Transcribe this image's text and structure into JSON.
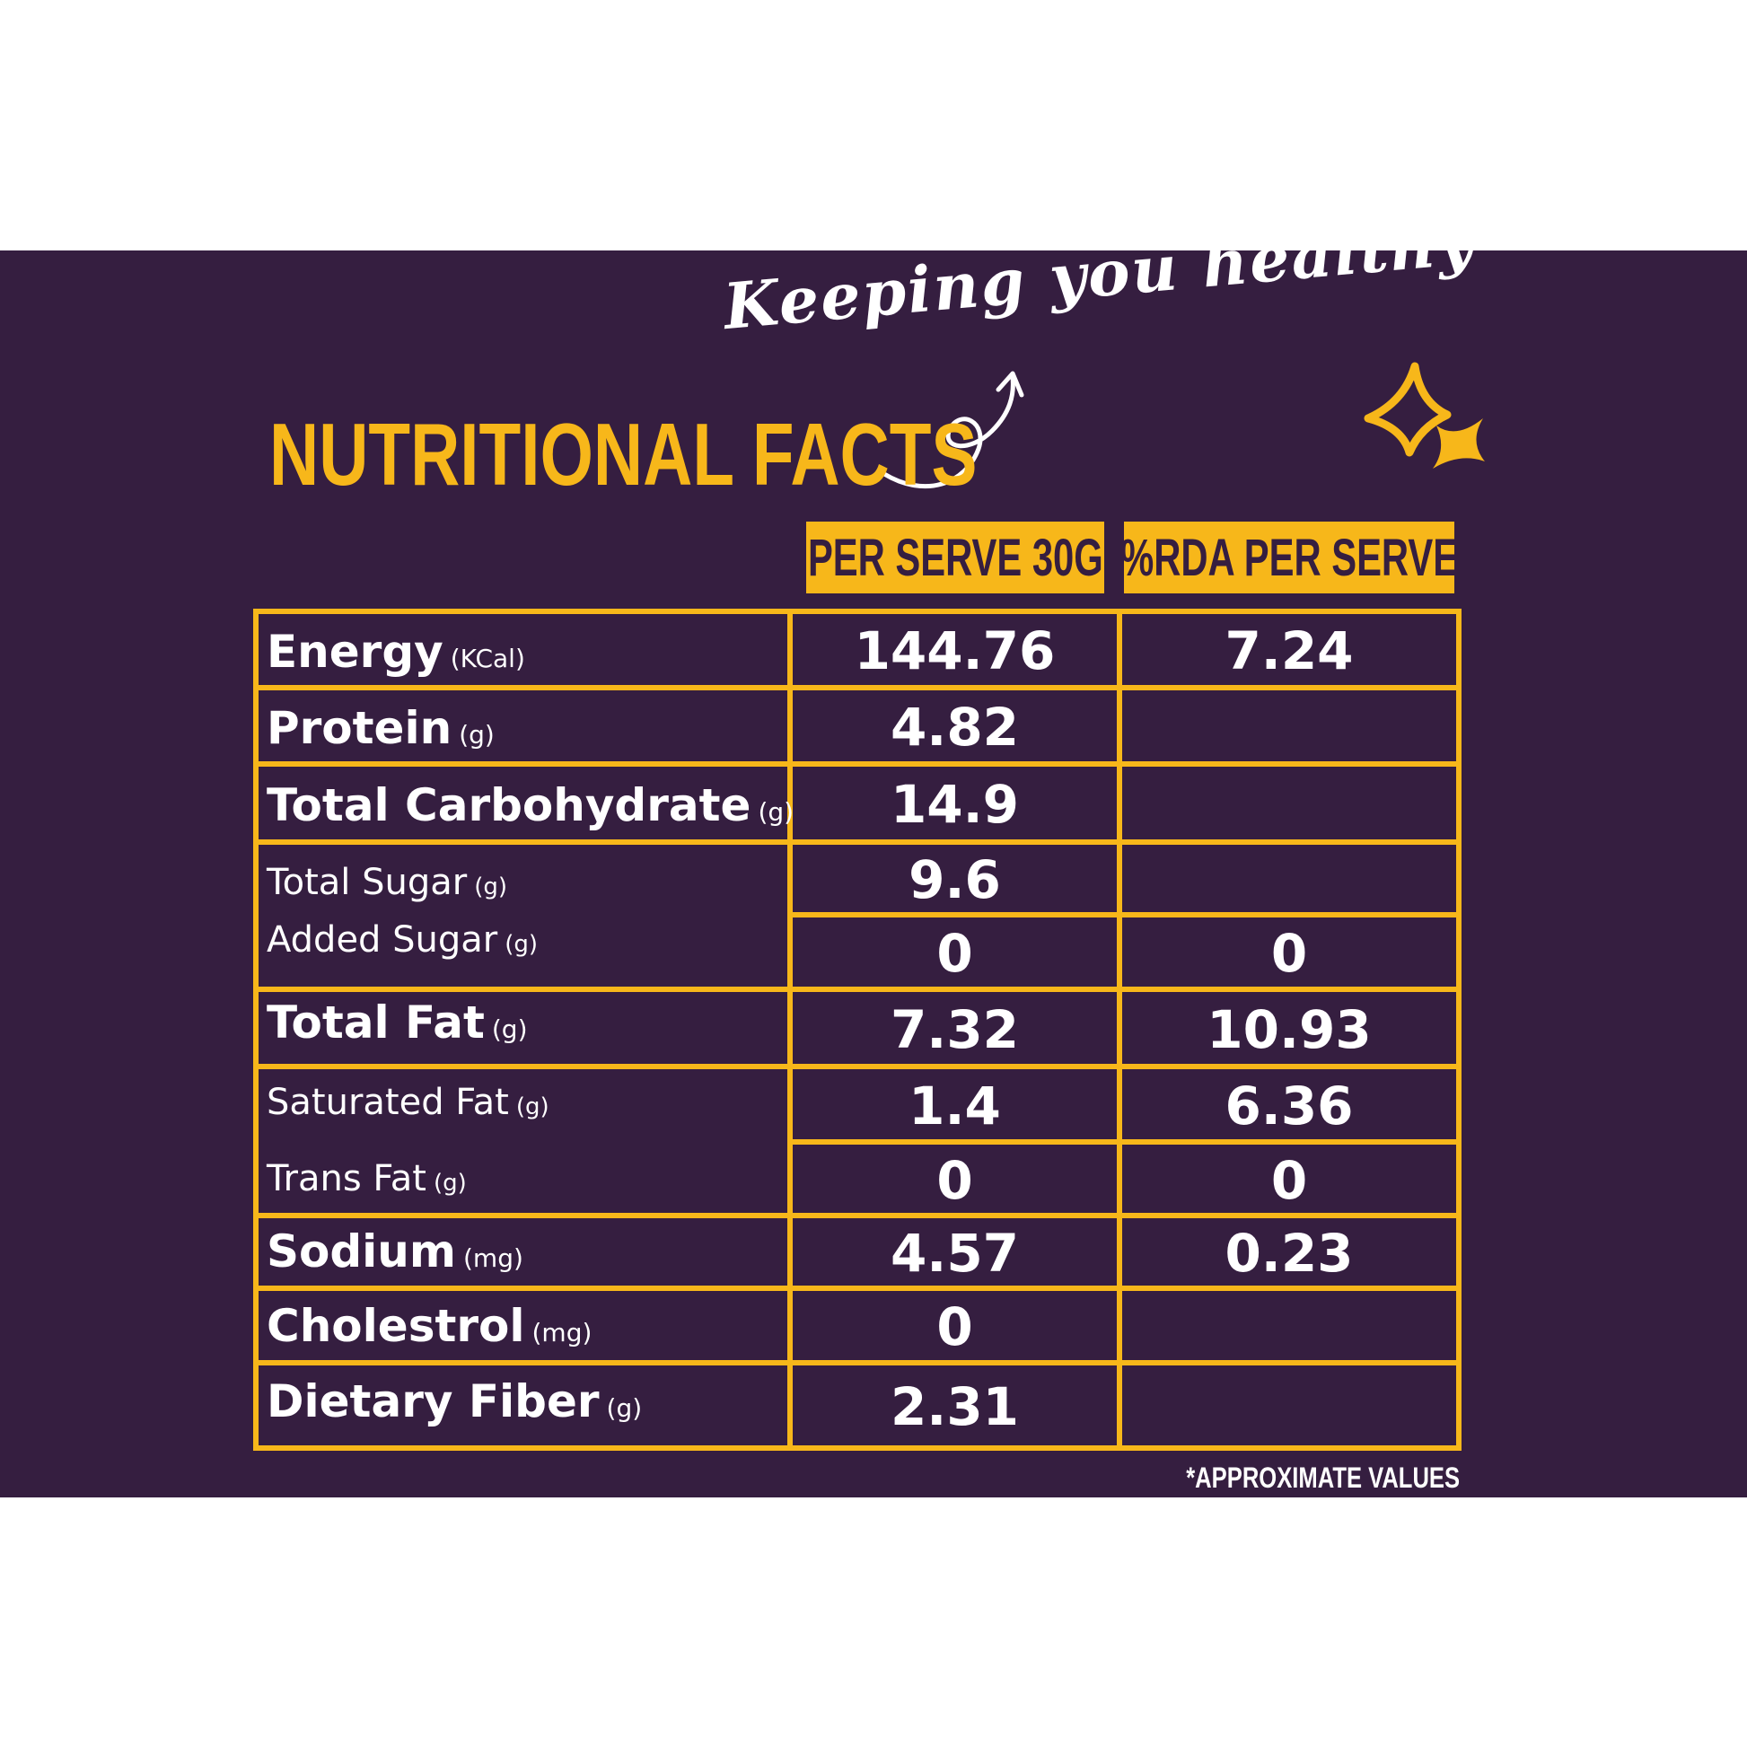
{
  "tagline": "Keeping you healthy",
  "title": "NUTRITIONAL FACTS",
  "columns": [
    "PER SERVE 30G",
    "%RDA PER SERVE"
  ],
  "rows": [
    {
      "label": "Energy",
      "unit": "(KCal)",
      "per_serve": "144.76",
      "rda": "7.24"
    },
    {
      "label": "Protein",
      "unit": "(g)",
      "per_serve": "4.82",
      "rda": ""
    },
    {
      "label": "Total Carbohydrate",
      "unit": "(g)",
      "per_serve": "14.9",
      "rda": ""
    },
    {
      "label": "Total Sugar",
      "unit": "(g)",
      "per_serve": "9.6",
      "rda": ""
    },
    {
      "label": "Added Sugar",
      "unit": "(g)",
      "per_serve": "0",
      "rda": "0"
    },
    {
      "label": "Total Fat",
      "unit": "(g)",
      "per_serve": "7.32",
      "rda": "10.93"
    },
    {
      "label": "Saturated Fat",
      "unit": "(g)",
      "per_serve": "1.4",
      "rda": "6.36"
    },
    {
      "label": "Trans Fat",
      "unit": "(g)",
      "per_serve": "0",
      "rda": "0"
    },
    {
      "label": "Sodium",
      "unit": "(mg)",
      "per_serve": "4.57",
      "rda": "0.23"
    },
    {
      "label": "Cholestrol",
      "unit": "(mg)",
      "per_serve": "0",
      "rda": ""
    },
    {
      "label": "Dietary Fiber",
      "unit": "(g)",
      "per_serve": "2.31",
      "rda": ""
    }
  ],
  "footnote": "*APPROXIMATE VALUES",
  "colors": {
    "background": "#351e40",
    "accent": "#f7b71a",
    "text": "#ffffff",
    "page": "#ffffff"
  }
}
